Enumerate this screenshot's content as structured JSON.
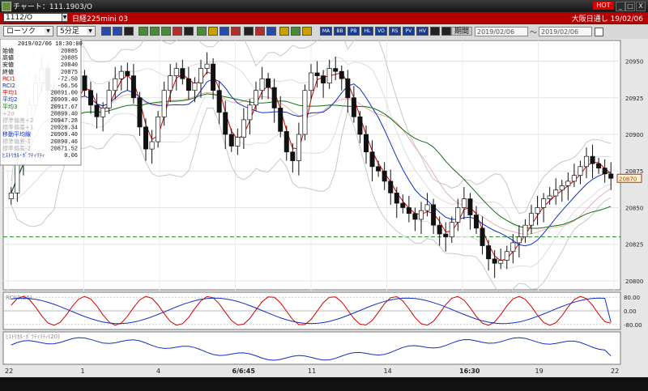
{
  "window": {
    "title": "チャート：111.1903/O",
    "hot_label": "HOT",
    "minimize": "_",
    "maximize": "□",
    "close": "X"
  },
  "symbol_bar": {
    "code": "1112/O",
    "name": "日経225mini 03",
    "market": "大阪日通し",
    "date": "19/02/06"
  },
  "toolbar": {
    "chart_type": "ローソク",
    "period": "5分足",
    "term_label": "期間",
    "from_date": "2019/02/06",
    "to_separator": "～",
    "to_date": "2019/02/06"
  },
  "info_panel": {
    "datetime": "2019/02/06    10:30:00",
    "rows": [
      {
        "label": "始値",
        "value": "20885",
        "color": "#000000"
      },
      {
        "label": "高値",
        "value": "20885",
        "color": "#000000"
      },
      {
        "label": "安値",
        "value": "20840",
        "color": "#000000"
      },
      {
        "label": "終値",
        "value": "20875",
        "color": "#000000"
      },
      {
        "label": "RCI1",
        "value": "-72.50",
        "color": "#d00000"
      },
      {
        "label": "RCI2",
        "value": "-66.56",
        "color": "#1030c0"
      },
      {
        "label": "平均1",
        "value": "20891.00",
        "color": "#d00000"
      },
      {
        "label": "平均2",
        "value": "20909.40",
        "color": "#1030c0"
      },
      {
        "label": "平均3",
        "value": "20917.67",
        "color": "#107010"
      },
      {
        "label": "+2σ",
        "value": "20899.40",
        "color": "#c0a0a0"
      },
      {
        "label": "標準偏差+2",
        "value": "20947.28",
        "color": "#b0b0b0"
      },
      {
        "label": "標準偏差+1",
        "value": "20928.34",
        "color": "#b0b0b0"
      },
      {
        "label": "移動平均線",
        "value": "20909.40",
        "color": "#1030c0"
      },
      {
        "label": "標準偏差-1",
        "value": "20890.46",
        "color": "#b0b0b0"
      },
      {
        "label": "標準偏差-2",
        "value": "20871.52",
        "color": "#b0b0b0"
      },
      {
        "label": "ﾋｽﾄﾘｶﾙ･ﾎﾞﾗﾃｨﾘﾃｨ",
        "value": "0.06",
        "color": "#1030c0"
      }
    ]
  },
  "chart_data": [
    {
      "type": "candlestick",
      "title": "",
      "price_axis_ticks": [
        20950,
        20925,
        20900,
        20875,
        20850,
        20825,
        20800
      ],
      "ylim": [
        20795,
        20963
      ],
      "current_price_label": "20870",
      "reference_line": 20830,
      "x_tick_labels": [
        "22",
        "1",
        "4",
        "6/6:45",
        "11",
        "14",
        "16:30",
        "19",
        "22"
      ],
      "grid": true,
      "close_series_approx": [
        20860,
        20880,
        20900,
        20920,
        20935,
        20945,
        20930,
        20915,
        20905,
        20910,
        20925,
        20940,
        20930,
        20920,
        20912,
        20918,
        20930,
        20938,
        20943,
        20940,
        20925,
        20905,
        20890,
        20895,
        20912,
        20930,
        20940,
        20945,
        20938,
        20930,
        20935,
        20945,
        20948,
        20930,
        20915,
        20900,
        20892,
        20898,
        20910,
        20920,
        20930,
        20938,
        20932,
        20918,
        20902,
        20888,
        20882,
        20900,
        20930,
        20942,
        20940,
        20935,
        20945,
        20943,
        20938,
        20925,
        20912,
        20900,
        20888,
        20878,
        20875,
        20868,
        20860,
        20853,
        20850,
        20846,
        20842,
        20848,
        20852,
        20838,
        20832,
        20830,
        20840,
        20850,
        20856,
        20845,
        20836,
        20824,
        20815,
        20812,
        20814,
        20820,
        20826,
        20830,
        20838,
        20846,
        20850,
        20856,
        20858,
        20862,
        20865,
        20868,
        20872,
        20878,
        20885,
        20880,
        20877,
        20873,
        20870
      ],
      "moving_averages": [
        {
          "name": "平均1",
          "color": "#d00000"
        },
        {
          "name": "平均2",
          "color": "#1030c0"
        },
        {
          "name": "平均3",
          "color": "#107010"
        }
      ]
    },
    {
      "type": "line",
      "title": "RCI(9,26)",
      "ylim": [
        -100,
        100
      ],
      "axis_ticks": [
        "80.00",
        "0.00",
        "-80.00"
      ],
      "series": [
        {
          "name": "RCI1",
          "color": "#d00000",
          "last": -72.5
        },
        {
          "name": "RCI2",
          "color": "#1030c0",
          "last": -66.56
        }
      ]
    },
    {
      "type": "line",
      "title": "ﾋｽﾄﾘｶﾙ･ﾎﾞﾗﾃｨﾘﾃｨ(20)",
      "series": [
        {
          "name": "ﾋｽﾄﾘｶﾙ･ﾎﾞﾗﾃｨﾘﾃｨ",
          "color": "#1030c0",
          "last": 0.06
        }
      ]
    }
  ]
}
